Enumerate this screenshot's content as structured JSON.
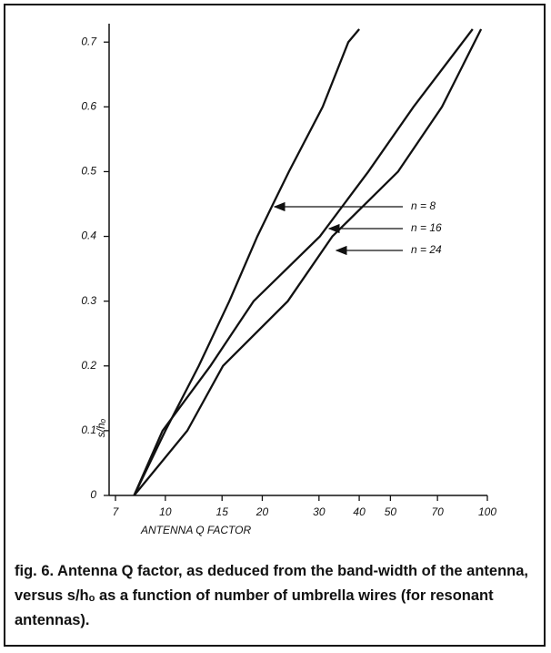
{
  "chart_data": {
    "type": "line",
    "xlabel": "ANTENNA Q FACTOR",
    "ylabel": "s/hₒ",
    "xscale": "log",
    "xlim": [
      7,
      100
    ],
    "xticks": [
      7,
      10,
      15,
      20,
      30,
      40,
      50,
      70,
      100
    ],
    "ylim": [
      0,
      0.72
    ],
    "yticks": [
      0,
      0.1,
      0.2,
      0.3,
      0.4,
      0.5,
      0.6,
      0.7
    ],
    "series": [
      {
        "name": "n = 8",
        "color": "#111111",
        "x": [
          8,
          10,
          12.7,
          15.8,
          19.3,
          21.6,
          24.2,
          30.8,
          37,
          40
        ],
        "values": [
          0,
          0.1,
          0.2,
          0.3,
          0.4,
          0.45,
          0.5,
          0.6,
          0.7,
          0.72
        ]
      },
      {
        "name": "n = 16",
        "color": "#111111",
        "x": [
          8,
          9.8,
          13.8,
          18.8,
          30.2,
          42.7,
          59,
          90
        ],
        "values": [
          0,
          0.1,
          0.2,
          0.3,
          0.4,
          0.5,
          0.6,
          0.72
        ]
      },
      {
        "name": "n = 24",
        "color": "#111111",
        "x": [
          8,
          11.7,
          15.1,
          24,
          33,
          52.8,
          72.3,
          95.6
        ],
        "values": [
          0,
          0.1,
          0.2,
          0.3,
          0.4,
          0.5,
          0.6,
          0.72
        ]
      }
    ],
    "caption": "fig. 6. Antenna Q factor, as deduced from the band-width of the antenna, versus s/hₒ as a function of number of umbrella wires (for resonant antennas)."
  }
}
